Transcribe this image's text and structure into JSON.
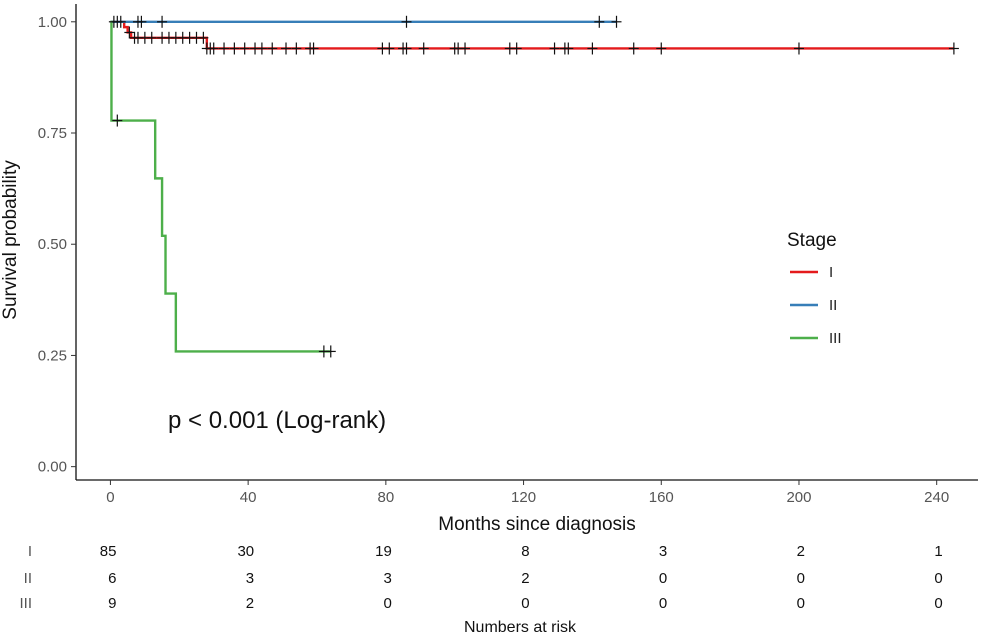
{
  "chart_data": {
    "type": "line",
    "subtype": "kaplan-meier",
    "title": "",
    "xlabel": "Months since diagnosis",
    "ylabel": "Survival probability",
    "xlim": [
      -10,
      252
    ],
    "ylim": [
      -0.03,
      1.04
    ],
    "xticks": [
      0,
      40,
      80,
      120,
      160,
      200,
      240
    ],
    "yticks": [
      0.0,
      0.25,
      0.5,
      0.75,
      1.0
    ],
    "ytick_labels": [
      "0.00",
      "0.25",
      "0.50",
      "0.75",
      "1.00"
    ],
    "grid": false,
    "legend": {
      "title": "Stage",
      "position": "right",
      "entries": [
        "I",
        "II",
        "III"
      ]
    },
    "annotation": "p < 0.001 (Log-rank)",
    "series": [
      {
        "name": "I",
        "color": "#e41a1c",
        "steps": [
          [
            0,
            1.0
          ],
          [
            4,
            0.988
          ],
          [
            5,
            0.976
          ],
          [
            6,
            0.964
          ],
          [
            28,
            0.94
          ],
          [
            245,
            0.94
          ]
        ],
        "censors": [
          [
            1,
            1.0
          ],
          [
            2,
            1.0
          ],
          [
            3,
            1.0
          ],
          [
            5.5,
            0.976
          ],
          [
            7,
            0.964
          ],
          [
            8,
            0.964
          ],
          [
            10,
            0.964
          ],
          [
            12,
            0.964
          ],
          [
            15,
            0.964
          ],
          [
            17,
            0.964
          ],
          [
            19,
            0.964
          ],
          [
            21,
            0.964
          ],
          [
            23,
            0.964
          ],
          [
            25,
            0.964
          ],
          [
            27,
            0.964
          ],
          [
            28,
            0.94
          ],
          [
            29,
            0.94
          ],
          [
            30,
            0.94
          ],
          [
            33,
            0.94
          ],
          [
            36,
            0.94
          ],
          [
            39,
            0.94
          ],
          [
            42,
            0.94
          ],
          [
            44,
            0.94
          ],
          [
            47,
            0.94
          ],
          [
            51,
            0.94
          ],
          [
            54,
            0.94
          ],
          [
            58,
            0.94
          ],
          [
            59,
            0.94
          ],
          [
            79,
            0.94
          ],
          [
            81,
            0.94
          ],
          [
            85,
            0.94
          ],
          [
            86,
            0.94
          ],
          [
            91,
            0.94
          ],
          [
            100,
            0.94
          ],
          [
            101,
            0.94
          ],
          [
            103,
            0.94
          ],
          [
            116,
            0.94
          ],
          [
            118,
            0.94
          ],
          [
            129,
            0.94
          ],
          [
            132,
            0.94
          ],
          [
            133,
            0.94
          ],
          [
            140,
            0.94
          ],
          [
            152,
            0.94
          ],
          [
            160,
            0.94
          ],
          [
            200,
            0.94
          ],
          [
            245,
            0.94
          ]
        ]
      },
      {
        "name": "II",
        "color": "#377eb8",
        "steps": [
          [
            0,
            1.0
          ],
          [
            147,
            1.0
          ]
        ],
        "censors": [
          [
            8,
            1.0
          ],
          [
            9,
            1.0
          ],
          [
            15,
            1.0
          ],
          [
            86,
            1.0
          ],
          [
            142,
            1.0
          ],
          [
            147,
            1.0
          ]
        ]
      },
      {
        "name": "III",
        "color": "#4daf4a",
        "steps": [
          [
            0,
            1.0
          ],
          [
            0.3,
            0.778
          ],
          [
            13,
            0.648
          ],
          [
            15,
            0.519
          ],
          [
            16,
            0.389
          ],
          [
            19,
            0.259
          ],
          [
            64,
            0.259
          ]
        ],
        "censors": [
          [
            2,
            0.778
          ],
          [
            62,
            0.259
          ],
          [
            64,
            0.259
          ]
        ]
      }
    ],
    "risk_table": {
      "title": "Numbers at risk",
      "times": [
        0,
        40,
        80,
        120,
        160,
        200,
        240
      ],
      "rows": [
        {
          "label": "I",
          "color": "#e41a1c",
          "values": [
            "85",
            "30",
            "19",
            "8",
            "3",
            "2",
            "1"
          ]
        },
        {
          "label": "II",
          "color": "#377eb8",
          "values": [
            "6",
            "3",
            "3",
            "2",
            "0",
            "0",
            "0"
          ]
        },
        {
          "label": "III",
          "color": "#4daf4a",
          "values": [
            "9",
            "2",
            "0",
            "0",
            "0",
            "0",
            "0"
          ]
        }
      ]
    }
  }
}
